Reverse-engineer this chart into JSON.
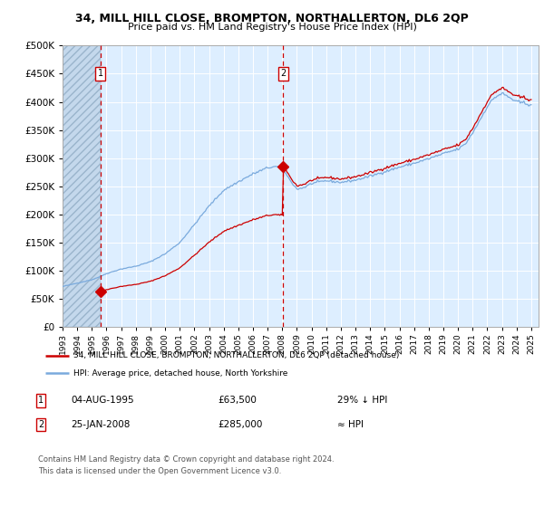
{
  "title": "34, MILL HILL CLOSE, BROMPTON, NORTHALLERTON, DL6 2QP",
  "subtitle": "Price paid vs. HM Land Registry's House Price Index (HPI)",
  "sale1_date": "04-AUG-1995",
  "sale1_price": 63500,
  "sale1_year": 1995.58,
  "sale2_date": "25-JAN-2008",
  "sale2_price": 285000,
  "sale2_year": 2008.07,
  "legend1": "34, MILL HILL CLOSE, BROMPTON, NORTHALLERTON, DL6 2QP (detached house)",
  "legend2": "HPI: Average price, detached house, North Yorkshire",
  "table1_label": "1",
  "table1_date": "04-AUG-1995",
  "table1_price": "£63,500",
  "table1_hpi": "29% ↓ HPI",
  "table2_label": "2",
  "table2_date": "25-JAN-2008",
  "table2_price": "£285,000",
  "table2_hpi": "≈ HPI",
  "footnote1": "Contains HM Land Registry data © Crown copyright and database right 2024.",
  "footnote2": "This data is licensed under the Open Government Licence v3.0.",
  "hpi_line_color": "#7aaadd",
  "property_line_color": "#cc0000",
  "marker_color": "#cc0000",
  "dashed_line_color": "#cc0000",
  "background_plot": "#ddeeff",
  "ylim": [
    0,
    500000
  ],
  "yticks": [
    0,
    50000,
    100000,
    150000,
    200000,
    250000,
    300000,
    350000,
    400000,
    450000,
    500000
  ],
  "xmin": 1993.0,
  "xmax": 2025.5
}
